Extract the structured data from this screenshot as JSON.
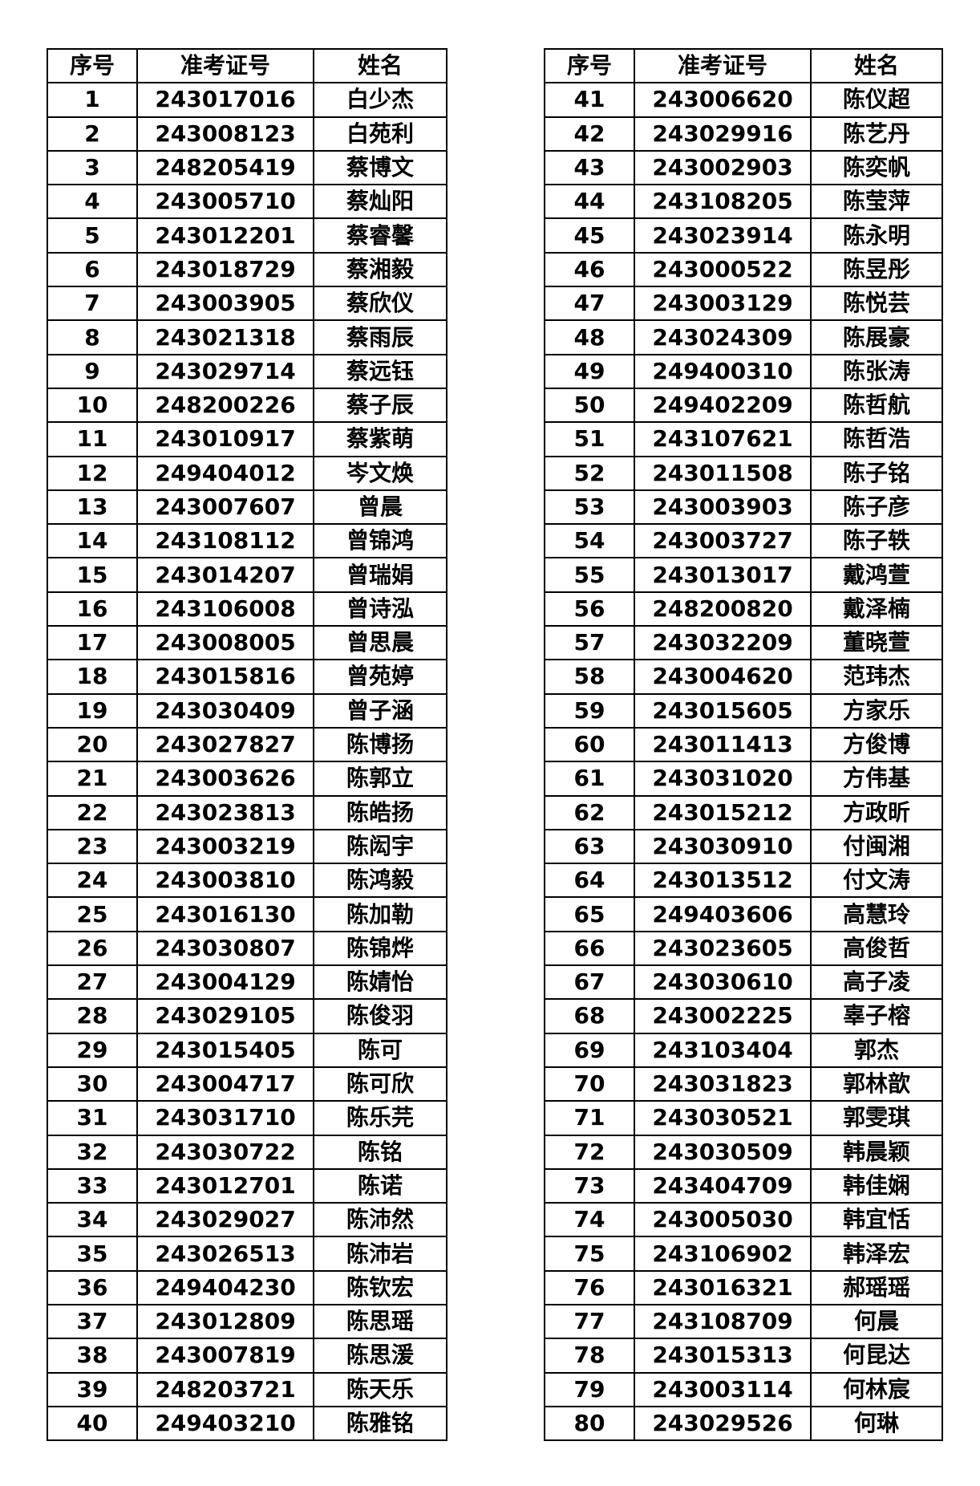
{
  "headers": [
    "序号",
    "准考证号",
    "姓名"
  ],
  "left_rows": [
    [
      "1",
      "243017016",
      "白少杰"
    ],
    [
      "2",
      "243008123",
      "白苑利"
    ],
    [
      "3",
      "248205419",
      "蔡博文"
    ],
    [
      "4",
      "243005710",
      "蔡灿阳"
    ],
    [
      "5",
      "243012201",
      "蔡睿馨"
    ],
    [
      "6",
      "243018729",
      "蔡湘毅"
    ],
    [
      "7",
      "243003905",
      "蔡欣仪"
    ],
    [
      "8",
      "243021318",
      "蔡雨辰"
    ],
    [
      "9",
      "243029714",
      "蔡远钰"
    ],
    [
      "10",
      "248200226",
      "蔡子辰"
    ],
    [
      "11",
      "243010917",
      "蔡紫萌"
    ],
    [
      "12",
      "249404012",
      "岑文焕"
    ],
    [
      "13",
      "243007607",
      "曾晨"
    ],
    [
      "14",
      "243108112",
      "曾锦鸿"
    ],
    [
      "15",
      "243014207",
      "曾瑞娟"
    ],
    [
      "16",
      "243106008",
      "曾诗泓"
    ],
    [
      "17",
      "243008005",
      "曾思晨"
    ],
    [
      "18",
      "243015816",
      "曾苑婷"
    ],
    [
      "19",
      "243030409",
      "曾子涵"
    ],
    [
      "20",
      "243027827",
      "陈博扬"
    ],
    [
      "21",
      "243003626",
      "陈郭立"
    ],
    [
      "22",
      "243023813",
      "陈皓扬"
    ],
    [
      "23",
      "243003219",
      "陈闳宇"
    ],
    [
      "24",
      "243003810",
      "陈鸿毅"
    ],
    [
      "25",
      "243016130",
      "陈加勒"
    ],
    [
      "26",
      "243030807",
      "陈锦烨"
    ],
    [
      "27",
      "243004129",
      "陈婧怡"
    ],
    [
      "28",
      "243029105",
      "陈俊羽"
    ],
    [
      "29",
      "243015405",
      "陈可"
    ],
    [
      "30",
      "243004717",
      "陈可欣"
    ],
    [
      "31",
      "243031710",
      "陈乐芫"
    ],
    [
      "32",
      "243030722",
      "陈铭"
    ],
    [
      "33",
      "243012701",
      "陈诺"
    ],
    [
      "34",
      "243029027",
      "陈沛然"
    ],
    [
      "35",
      "243026513",
      "陈沛岩"
    ],
    [
      "36",
      "249404230",
      "陈钦宏"
    ],
    [
      "37",
      "243012809",
      "陈思瑶"
    ],
    [
      "38",
      "243007819",
      "陈思湲"
    ],
    [
      "39",
      "248203721",
      "陈天乐"
    ],
    [
      "40",
      "249403210",
      "陈雅铭"
    ]
  ],
  "right_rows": [
    [
      "41",
      "243006620",
      "陈仪超"
    ],
    [
      "42",
      "243029916",
      "陈艺丹"
    ],
    [
      "43",
      "243002903",
      "陈奕帆"
    ],
    [
      "44",
      "243108205",
      "陈莹萍"
    ],
    [
      "45",
      "243023914",
      "陈永明"
    ],
    [
      "46",
      "243000522",
      "陈昱彤"
    ],
    [
      "47",
      "243003129",
      "陈悦芸"
    ],
    [
      "48",
      "243024309",
      "陈展豪"
    ],
    [
      "49",
      "249400310",
      "陈张涛"
    ],
    [
      "50",
      "249402209",
      "陈哲航"
    ],
    [
      "51",
      "243107621",
      "陈哲浩"
    ],
    [
      "52",
      "243011508",
      "陈子铭"
    ],
    [
      "53",
      "243003903",
      "陈子彦"
    ],
    [
      "54",
      "243003727",
      "陈子轶"
    ],
    [
      "55",
      "243013017",
      "戴鸿萱"
    ],
    [
      "56",
      "248200820",
      "戴泽楠"
    ],
    [
      "57",
      "243032209",
      "董晓萱"
    ],
    [
      "58",
      "243004620",
      "范玮杰"
    ],
    [
      "59",
      "243015605",
      "方家乐"
    ],
    [
      "60",
      "243011413",
      "方俊博"
    ],
    [
      "61",
      "243031020",
      "方伟基"
    ],
    [
      "62",
      "243015212",
      "方政昕"
    ],
    [
      "63",
      "243030910",
      "付闽湘"
    ],
    [
      "64",
      "243013512",
      "付文涛"
    ],
    [
      "65",
      "249403606",
      "高慧玲"
    ],
    [
      "66",
      "243023605",
      "高俊哲"
    ],
    [
      "67",
      "243030610",
      "高子凌"
    ],
    [
      "68",
      "243002225",
      "辜子榕"
    ],
    [
      "69",
      "243103404",
      "郭杰"
    ],
    [
      "70",
      "243031823",
      "郭林歆"
    ],
    [
      "71",
      "243030521",
      "郭雯琪"
    ],
    [
      "72",
      "243030509",
      "韩晨颖"
    ],
    [
      "73",
      "243404709",
      "韩佳娴"
    ],
    [
      "74",
      "243005030",
      "韩宜恬"
    ],
    [
      "75",
      "243106902",
      "韩泽宏"
    ],
    [
      "76",
      "243016321",
      "郝瑶瑶"
    ],
    [
      "77",
      "243108709",
      "何晨"
    ],
    [
      "78",
      "243015313",
      "何昆达"
    ],
    [
      "79",
      "243003114",
      "何林宸"
    ],
    [
      "80",
      "243029526",
      "何琳"
    ]
  ]
}
